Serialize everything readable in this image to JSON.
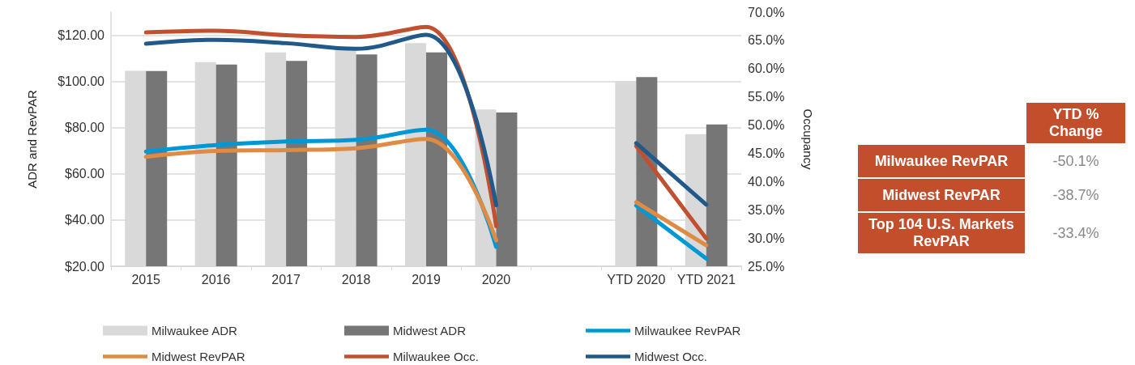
{
  "chart_data": [
    {
      "type": "bar",
      "ylabel": "ADR and RevPAR",
      "y2label": "Occupancy",
      "categories": [
        "2015",
        "2016",
        "2017",
        "2018",
        "2019",
        "2020",
        null,
        "YTD 2020",
        "YTD 2021"
      ],
      "series": [
        {
          "name": "Milwaukee ADR",
          "type": "bar",
          "color": "#d9d9d9",
          "values": [
            104.6,
            108.4,
            112.6,
            114.0,
            116.6,
            87.9,
            null,
            100.1,
            77.2
          ]
        },
        {
          "name": "Midwest ADR",
          "type": "bar",
          "color": "#767676",
          "values": [
            104.5,
            107.3,
            108.9,
            111.7,
            112.6,
            86.6,
            null,
            101.9,
            81.4
          ]
        },
        {
          "name": "Milwaukee RevPAR",
          "type": "line",
          "color": "#0098d4",
          "values": [
            69.7,
            72.5,
            74.0,
            74.7,
            79.1,
            28.4,
            null,
            46.3,
            23.3
          ]
        },
        {
          "name": "Midwest RevPAR",
          "type": "line",
          "color": "#e08b43",
          "values": [
            67.4,
            69.9,
            70.3,
            71.1,
            75.1,
            31.2,
            null,
            47.7,
            29.1
          ]
        },
        {
          "name": "Milwaukee Occ.",
          "type": "line",
          "axis": "y2",
          "color": "#c0502f",
          "values": [
            66.4,
            66.7,
            65.9,
            65.6,
            67.4,
            32.1,
            null,
            46.3,
            29.9
          ]
        },
        {
          "name": "Midwest Occ.",
          "type": "line",
          "axis": "y2",
          "color": "#215a8a",
          "values": [
            64.4,
            65.1,
            64.5,
            63.5,
            66.0,
            35.8,
            null,
            46.8,
            35.9
          ]
        }
      ],
      "ylim": [
        20,
        130
      ],
      "yticks": [
        {
          "value": 20,
          "label": "$20.00"
        },
        {
          "value": 40,
          "label": "$40.00"
        },
        {
          "value": 60,
          "label": "$60.00"
        },
        {
          "value": 80,
          "label": "$80.00"
        },
        {
          "value": 100,
          "label": "$100.00"
        },
        {
          "value": 120,
          "label": "$120.00"
        }
      ],
      "y2lim": [
        25,
        70
      ],
      "y2ticks": [
        {
          "value": 25,
          "label": "25.0%"
        },
        {
          "value": 30,
          "label": "30.0%"
        },
        {
          "value": 35,
          "label": "35.0%"
        },
        {
          "value": 40,
          "label": "40.0%"
        },
        {
          "value": 45,
          "label": "45.0%"
        },
        {
          "value": 50,
          "label": "50.0%"
        },
        {
          "value": 55,
          "label": "55.0%"
        },
        {
          "value": 60,
          "label": "60.0%"
        },
        {
          "value": 65,
          "label": "65.0%"
        },
        {
          "value": 70,
          "label": "70.0%"
        }
      ],
      "grid": "y",
      "legend": "bottom",
      "marker": "none"
    },
    {
      "type": "other",
      "annotations": [
        "YTD % Change",
        "Milwaukee RevPAR",
        "-50.1%",
        "Midwest RevPAR",
        "-38.7%",
        "Top 104 U.S. Markets RevPAR",
        "-33.4%"
      ]
    }
  ]
}
